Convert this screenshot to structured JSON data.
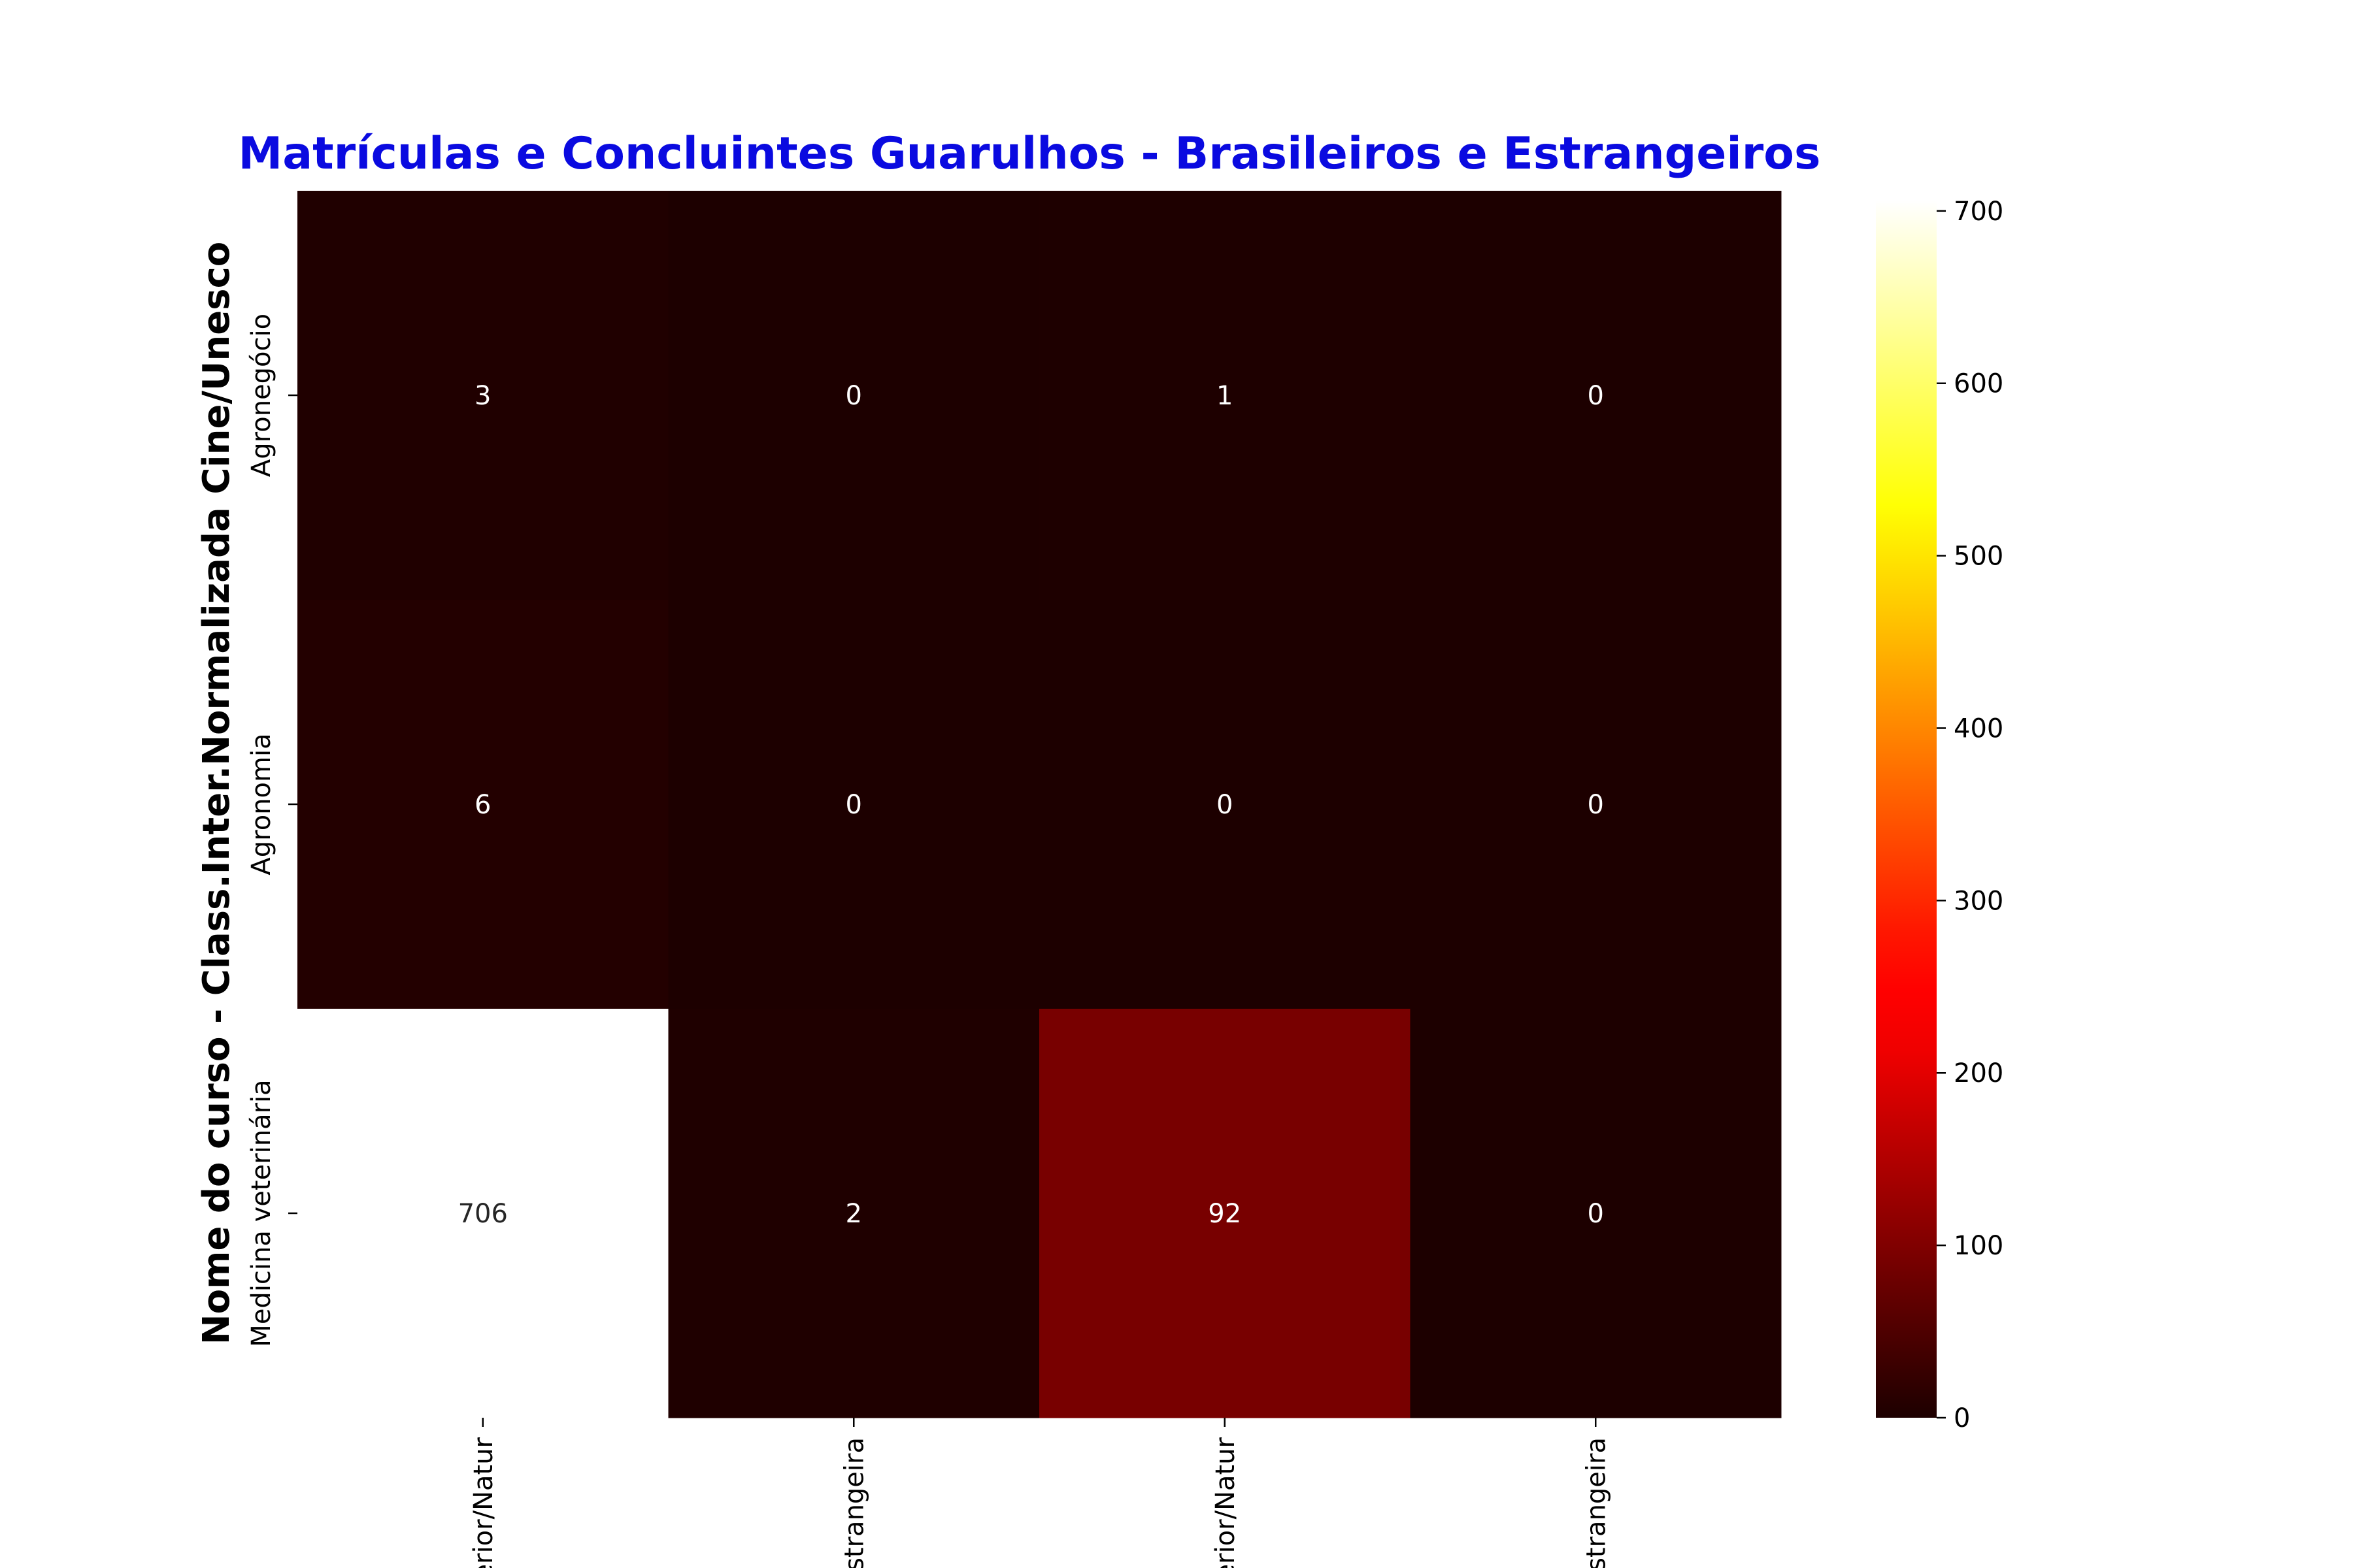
{
  "chart_data": {
    "type": "heatmap",
    "title": "Matrículas e Concluintes Guarulhos - Brasileiros e Estrangeiros",
    "ylabel": "Nome do curso - Class.Inter.Normalizada Cine/Unesco",
    "xlabel": "",
    "rows": [
      "Agronegócio",
      "Agronomia",
      "Medicina veterinária"
    ],
    "columns": [
      "erior/Natur",
      "Estrangeira",
      "terior/Natur",
      "Estrangeira"
    ],
    "values": [
      [
        3,
        0,
        1,
        0
      ],
      [
        6,
        0,
        0,
        0
      ],
      [
        706,
        2,
        92,
        0
      ]
    ],
    "colormap": "hot",
    "vmin": 0,
    "vmax": 706,
    "colorbar_ticks": [
      0,
      100,
      200,
      300,
      400,
      500,
      600,
      700
    ]
  }
}
